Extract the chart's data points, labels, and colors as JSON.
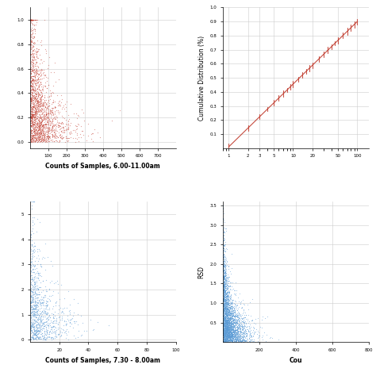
{
  "fig_bg": "#ffffff",
  "panel_bg": "#ffffff",
  "grid_color": "#cccccc",
  "tick_label_size": 4,
  "axis_label_size": 5.5,
  "top_left": {
    "scatter_color": "#c0392b",
    "point_size": 0.8,
    "alpha": 0.45,
    "xlabel": "Counts of Samples, 6.00-11.00am",
    "ylabel": "",
    "xlim": [
      0,
      800
    ],
    "ylim": [
      -0.05,
      1.1
    ],
    "xticks": [
      100,
      200,
      300,
      400,
      500,
      600,
      700
    ],
    "yticks": [
      0.0,
      0.2,
      0.4,
      0.6,
      0.8,
      1.0
    ],
    "n_points": 2000
  },
  "top_right": {
    "scatter_color": "#c0392b",
    "line_color": "#c0392b",
    "point_size": 2,
    "alpha": 0.7,
    "xlabel": "",
    "ylabel": "Cumulative Distribution (%)",
    "xlim_log": true,
    "ylim": [
      0,
      1.0
    ],
    "yticks": [
      0.1,
      0.2,
      0.3,
      0.4,
      0.5,
      0.6,
      0.7,
      0.8,
      0.9,
      1.0
    ],
    "xticks": [
      1,
      2,
      3,
      4,
      5,
      10,
      20,
      50,
      100
    ]
  },
  "bottom_left": {
    "scatter_color": "#5b9bd5",
    "point_size": 0.8,
    "alpha": 0.5,
    "xlabel": "Counts of Samples, 7.30 - 8.00am",
    "ylabel": "",
    "xlim": [
      0,
      100
    ],
    "ylim": [
      -0.1,
      5.5
    ],
    "xticks": [
      20,
      40,
      60,
      80,
      100
    ],
    "n_points": 1000
  },
  "bottom_right": {
    "scatter_color": "#5b9bd5",
    "point_size": 0.5,
    "alpha": 0.4,
    "xlabel": "Cou",
    "ylabel": "RSD",
    "xlim": [
      0,
      800
    ],
    "ylim": [
      0,
      3.6
    ],
    "xticks": [
      200,
      400,
      600,
      800
    ],
    "yticks": [
      0.5,
      1.0,
      1.5,
      2.0,
      2.5,
      3.0,
      3.5
    ],
    "n_points": 4000
  }
}
